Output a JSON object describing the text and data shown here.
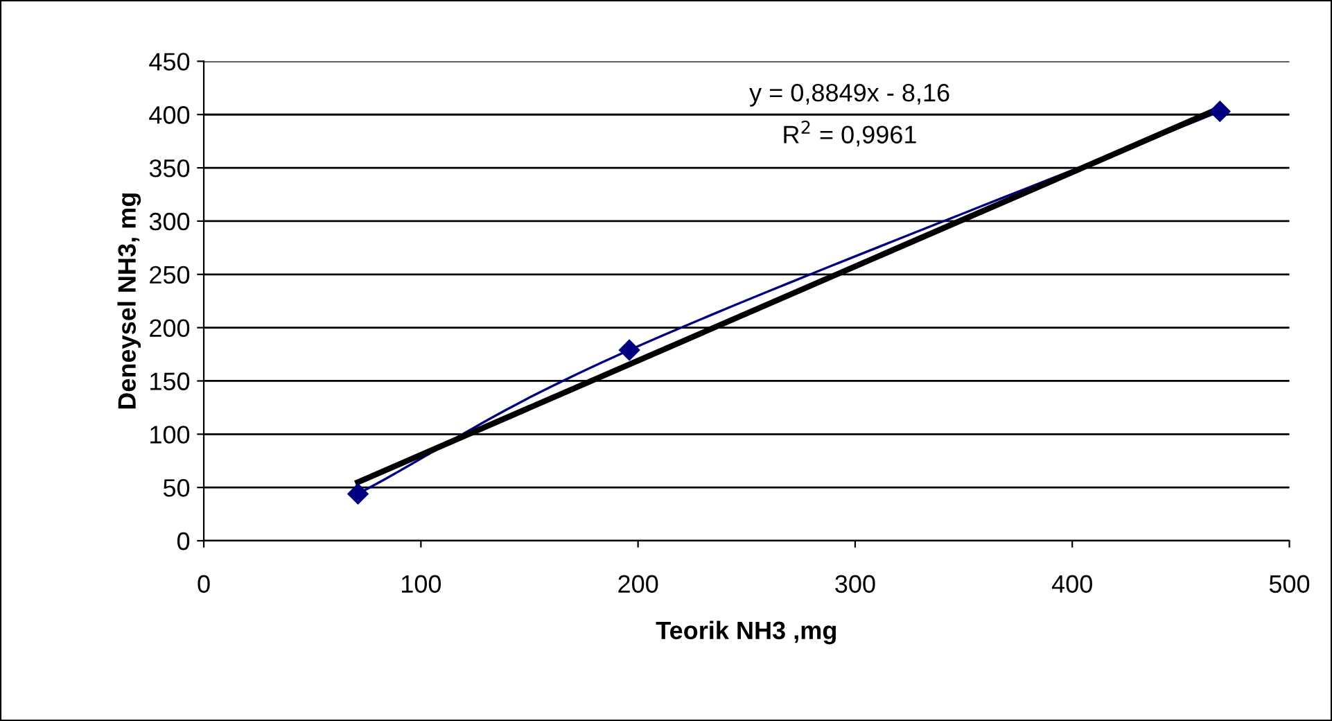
{
  "chart_data": {
    "type": "line",
    "xlabel": "Teorik NH3 ,mg",
    "ylabel": "Deneysel NH3, mg",
    "xlim": [
      0,
      500
    ],
    "xticks": [
      0,
      100,
      200,
      300,
      400,
      500
    ],
    "ylim": [
      0,
      450
    ],
    "yticks": [
      0,
      50,
      100,
      150,
      200,
      250,
      300,
      350,
      400,
      450
    ],
    "grid": "y",
    "legend": false,
    "series": [
      {
        "color": "#000080",
        "x": [
          71,
          196,
          468
        ],
        "values": [
          44,
          179,
          403
        ],
        "marker": "diamond",
        "line_style": "solid"
      },
      {
        "color": "#000000",
        "x": [
          71,
          468
        ],
        "values": [
          55,
          406
        ],
        "marker": "none",
        "line_style": "solid"
      }
    ],
    "annotations": [
      "y = 0,8849x - 8,16",
      "R$^{2}$ = 0,9961"
    ]
  }
}
